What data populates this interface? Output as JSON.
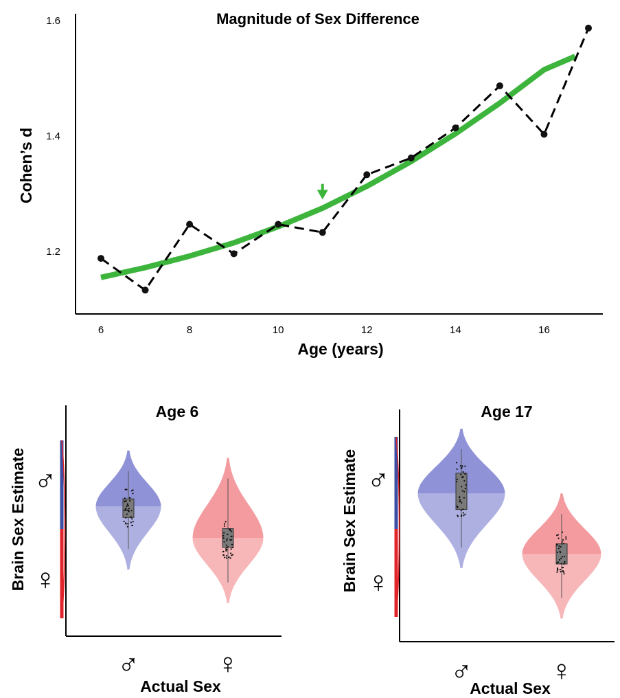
{
  "chart_data": [
    {
      "type": "line",
      "title": "Magnitude of Sex Difference",
      "xlabel": "Age (years)",
      "ylabel": "Cohen’s d",
      "xlim": [
        5.8,
        17.6
      ],
      "ylim": [
        1.1,
        1.61
      ],
      "x_ticks": [
        6,
        8,
        10,
        12,
        14,
        16
      ],
      "y_ticks": [
        1.2,
        1.4,
        1.6
      ],
      "grid": false,
      "series": [
        {
          "style": "dashed-markers",
          "color": "#000000",
          "x": [
            6,
            7,
            8,
            9,
            10,
            11,
            12,
            13,
            14,
            15,
            16,
            17
          ],
          "y": [
            1.188,
            1.133,
            1.247,
            1.196,
            1.247,
            1.233,
            1.333,
            1.362,
            1.414,
            1.487,
            1.403,
            1.587
          ]
        },
        {
          "style": "trend",
          "color": "#3db53d",
          "x": [
            6,
            7,
            8,
            9,
            10,
            11,
            12,
            13,
            14,
            15,
            16,
            16.7
          ],
          "y": [
            1.155,
            1.172,
            1.192,
            1.215,
            1.243,
            1.275,
            1.313,
            1.356,
            1.404,
            1.457,
            1.515,
            1.538
          ]
        }
      ],
      "annotations": [
        {
          "type": "arrow",
          "color": "#3db53d",
          "x": 11,
          "y_from": 1.317,
          "y_to": 1.29
        }
      ]
    },
    {
      "type": "violin",
      "title": "Age 6",
      "xlabel": "Actual Sex",
      "ylabel": "Brain Sex Estimate",
      "categories": [
        "♂",
        "♀"
      ],
      "category_colors": [
        "#3b4ea3",
        "#e0252b"
      ],
      "scale_bar": {
        "top_symbol": "♂",
        "bottom_symbol": "♀",
        "top_color": "#3b4ea3",
        "bottom_color": "#e0252b"
      },
      "ylim": [
        0,
        1
      ],
      "violins": [
        {
          "name": "♂",
          "min": 0.28,
          "max": 0.92,
          "median": 0.62,
          "q1": 0.56,
          "q3": 0.66,
          "color": "#7b7fcf"
        },
        {
          "name": "♀",
          "min": 0.1,
          "max": 0.88,
          "median": 0.45,
          "q1": 0.4,
          "q3": 0.5,
          "color": "#f28a8e"
        }
      ]
    },
    {
      "type": "violin",
      "title": "Age 17",
      "xlabel": "Actual Sex",
      "ylabel": "Brain Sex Estimate",
      "categories": [
        "♂",
        "♀"
      ],
      "category_colors": [
        "#3b4ea3",
        "#e0252b"
      ],
      "scale_bar": {
        "top_symbol": "♂",
        "bottom_symbol": "♀",
        "top_color": "#3b4ea3",
        "bottom_color": "#e0252b"
      },
      "ylim": [
        0,
        1
      ],
      "violins": [
        {
          "name": "♂",
          "min": 0.31,
          "max": 1.0,
          "median": 0.68,
          "q1": 0.6,
          "q3": 0.78,
          "color": "#7b7fcf"
        },
        {
          "name": "♀",
          "min": 0.06,
          "max": 0.68,
          "median": 0.38,
          "q1": 0.33,
          "q3": 0.43,
          "color": "#f28a8e"
        }
      ]
    }
  ]
}
